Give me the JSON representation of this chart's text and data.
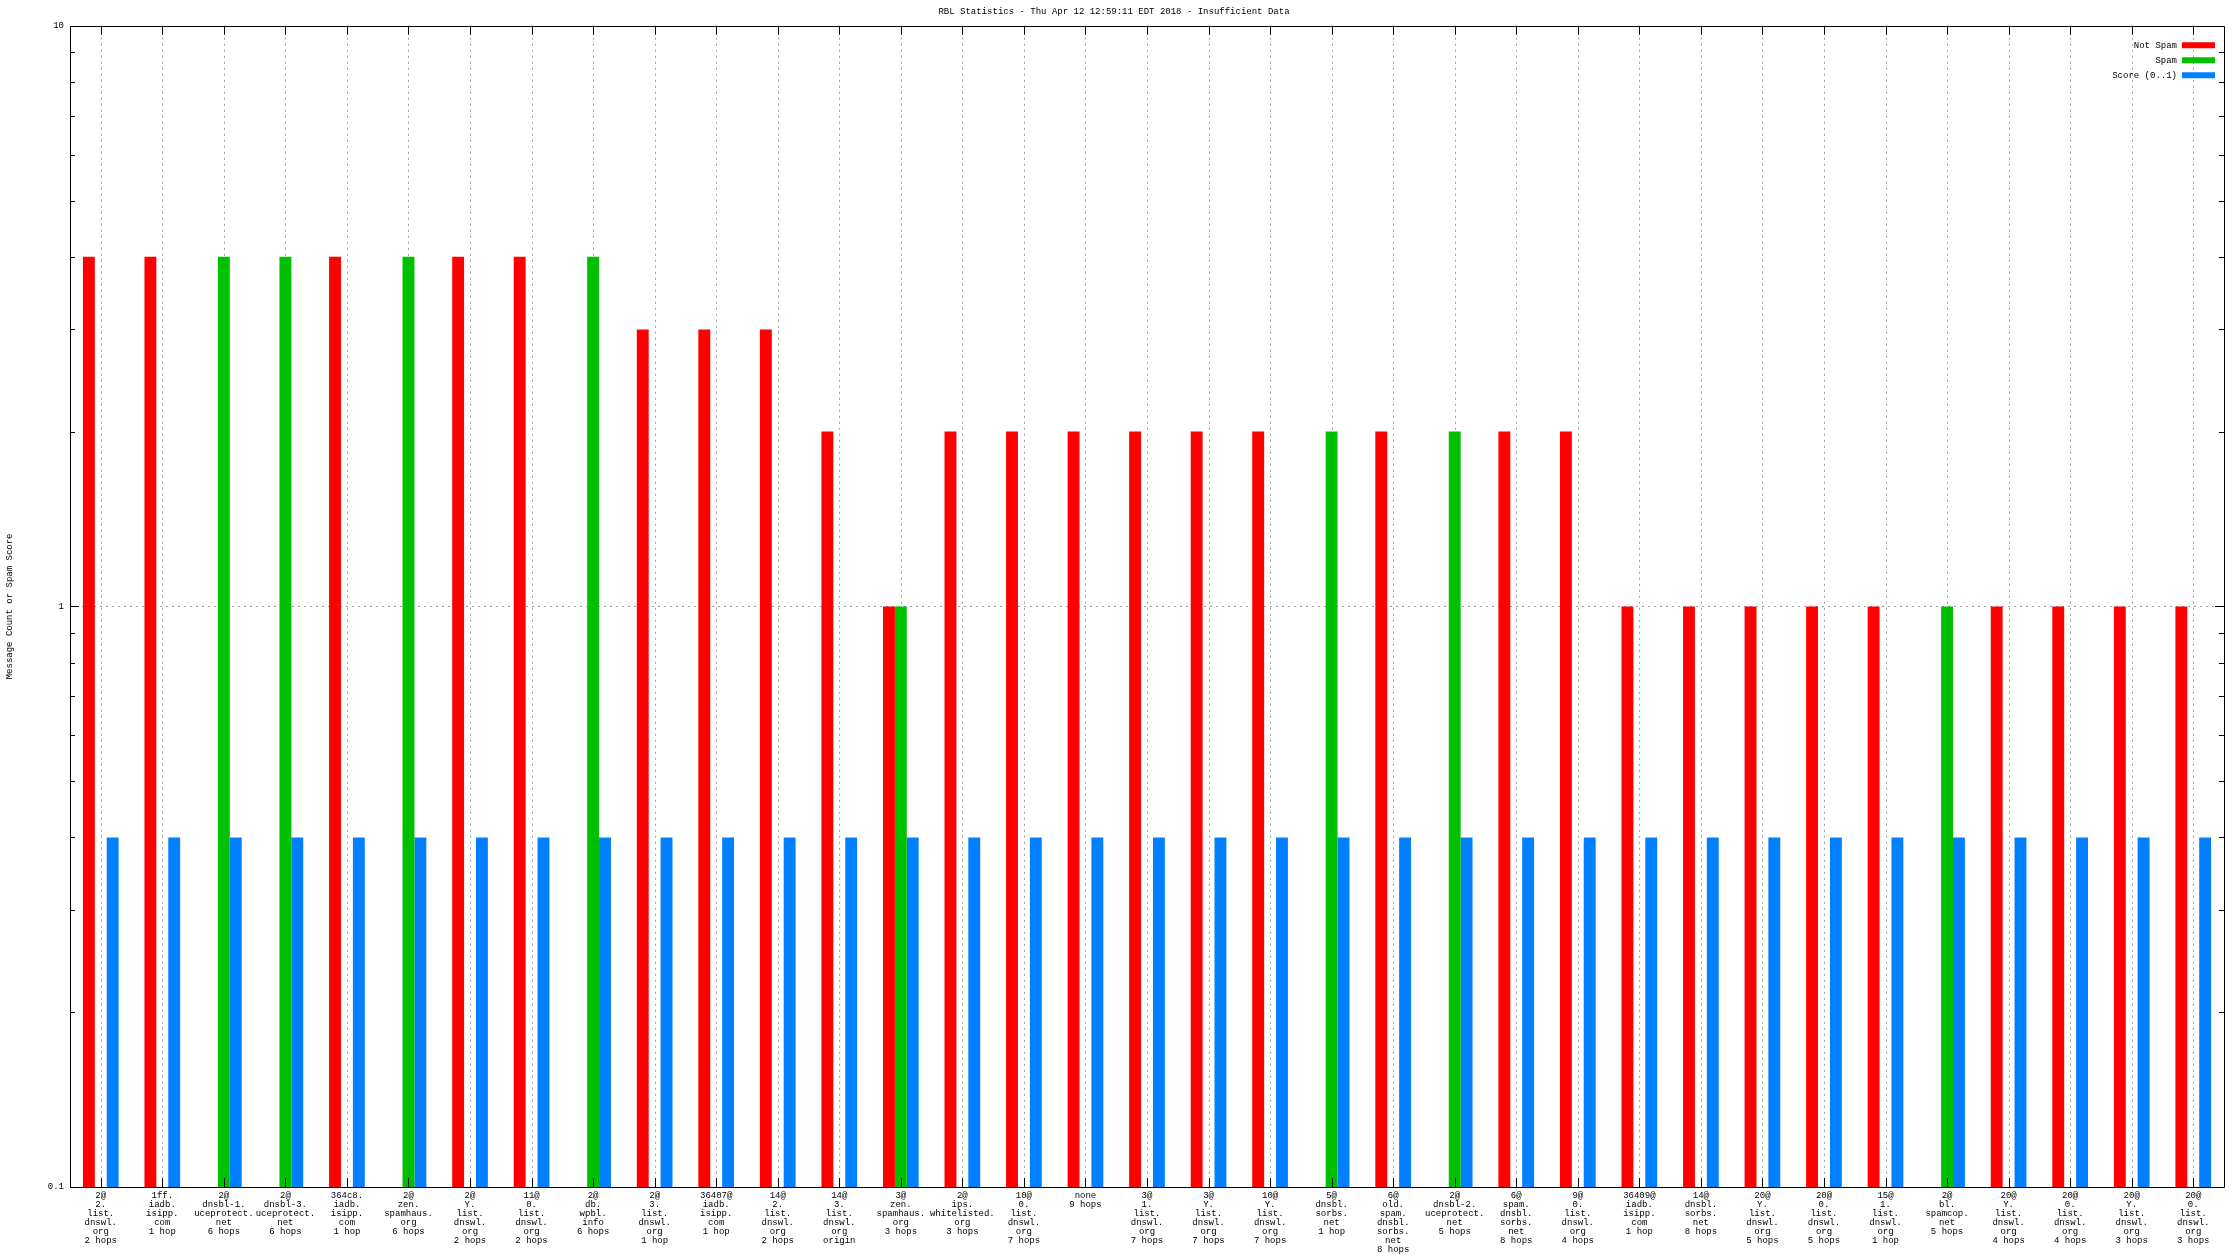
{
  "chart_data": {
    "type": "bar",
    "title": "RBL Statistics - Thu Apr 12 12:59:11 EDT 2018 - Insufficient Data",
    "ylabel": "Message Count or Spam Score",
    "categories": [
      "2@\n2.\nlist.\ndnswl.\norg\n2 hops",
      "1ff.\niadb.\nisipp.\ncom\n1 hop",
      "2@\ndnsbl-1.\nuceprotect.\nnet\n6 hops",
      "2@\ndnsbl-3.\nuceprotect.\nnet\n6 hops",
      "364c8.\niadb.\nisipp.\ncom\n1 hop",
      "2@\nzen.\nspamhaus.\norg\n6 hops",
      "2@\nY.\nlist.\ndnswl.\norg\n2 hops",
      "11@\n0.\nlist.\ndnswl.\norg\n2 hops",
      "2@\ndb.\nwpbl.\ninfo\n6 hops",
      "2@\n3.\nlist.\ndnswl.\norg\n1 hop",
      "36407@\niadb.\nisipp.\ncom\n1 hop",
      "14@\n2.\nlist.\ndnswl.\norg\n2 hops",
      "14@\n3.\nlist.\ndnswl.\norg\norigin",
      "3@\nzen.\nspamhaus.\norg\n3 hops",
      "2@\nips.\nwhitelisted.\norg\n3 hops",
      "10@\n0.\nlist.\ndnswl.\norg\n7 hops",
      "none\n9 hops",
      "3@\n1.\nlist.\ndnswl.\norg\n7 hops",
      "3@\nY.\nlist.\ndnswl.\norg\n7 hops",
      "10@\nY.\nlist.\ndnswl.\norg\n7 hops",
      "5@\ndnsbl.\nsorbs.\nnet\n1 hop",
      "6@\nold.\nspam.\ndnsbl.\nsorbs.\nnet\n8 hops",
      "2@\ndnsbl-2.\nuceprotect.\nnet\n5 hops",
      "6@\nspam.\ndnsbl.\nsorbs.\nnet\n8 hops",
      "9@\n0.\nlist.\ndnswl.\norg\n4 hops",
      "36409@\niadb.\nisipp.\ncom\n1 hop",
      "14@\ndnsbl.\nsorbs.\nnet\n8 hops",
      "20@\nY.\nlist.\ndnswl.\norg\n5 hops",
      "20@\n0.\nlist.\ndnswl.\norg\n5 hops",
      "15@\n1.\nlist.\ndnswl.\norg\n1 hop",
      "2@\nbl.\nspamcop.\nnet\n5 hops",
      "20@\nY.\nlist.\ndnswl.\norg\n4 hops",
      "20@\n0.\nlist.\ndnswl.\norg\n4 hops",
      "20@\nY.\nlist.\ndnswl.\norg\n3 hops",
      "20@\n0.\nlist.\ndnswl.\norg\n3 hops"
    ],
    "series": [
      {
        "name": "Not Spam",
        "color": "#ff0000",
        "values": [
          4,
          4,
          null,
          null,
          4,
          null,
          4,
          4,
          null,
          3,
          3,
          3,
          2,
          1,
          2,
          2,
          2,
          2,
          2,
          2,
          null,
          2,
          null,
          2,
          2,
          1,
          1,
          1,
          1,
          1,
          null,
          1,
          1,
          1,
          1
        ]
      },
      {
        "name": "Spam",
        "color": "#00c000",
        "values": [
          null,
          null,
          4,
          4,
          null,
          4,
          null,
          null,
          4,
          null,
          null,
          null,
          null,
          1,
          null,
          null,
          null,
          null,
          null,
          null,
          2,
          null,
          2,
          null,
          null,
          null,
          null,
          null,
          null,
          null,
          1,
          null,
          null,
          null,
          null
        ]
      },
      {
        "name": "Score (0..1)",
        "color": "#0080ff",
        "values": [
          0.4,
          0.4,
          0.4,
          0.4,
          0.4,
          0.4,
          0.4,
          0.4,
          0.4,
          0.4,
          0.4,
          0.4,
          0.4,
          0.4,
          0.4,
          0.4,
          0.4,
          0.4,
          0.4,
          0.4,
          0.4,
          0.4,
          0.4,
          0.4,
          0.4,
          0.4,
          0.4,
          0.4,
          0.4,
          0.4,
          0.4,
          0.4,
          0.4,
          0.4,
          0.4
        ]
      }
    ],
    "log": true,
    "ylim": [
      0.1,
      10
    ],
    "yticks": [
      0.1,
      {
        "value": 0.2,
        "label": null
      },
      {
        "value": 0.3,
        "label": null
      },
      {
        "value": 0.4,
        "label": null
      },
      {
        "value": 0.5,
        "label": null
      },
      {
        "value": 0.6,
        "label": null
      },
      {
        "value": 0.7,
        "label": null
      },
      {
        "value": 0.8,
        "label": null
      },
      {
        "value": 0.9,
        "label": null
      },
      1,
      {
        "value": 2,
        "label": null
      },
      {
        "value": 3,
        "label": null
      },
      {
        "value": 4,
        "label": null
      },
      {
        "value": 5,
        "label": null
      },
      {
        "value": 6,
        "label": null
      },
      {
        "value": 7,
        "label": null
      },
      {
        "value": 8,
        "label": null
      },
      {
        "value": 9,
        "label": null
      },
      10
    ],
    "grid": true,
    "legend": "top right"
  }
}
